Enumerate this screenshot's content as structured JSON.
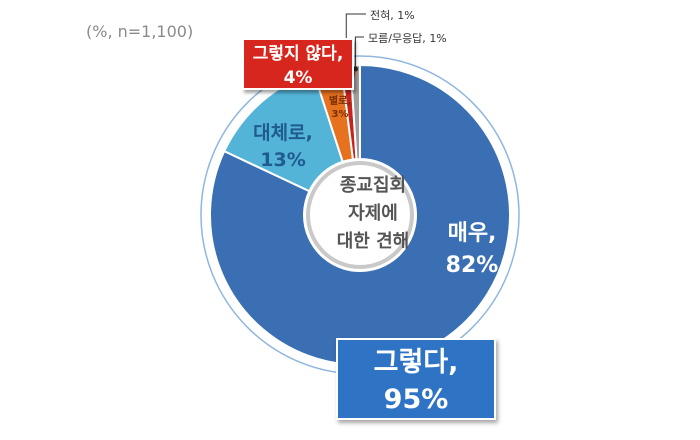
{
  "note": "(%, n=1,100)",
  "center_label": [
    "종교집회",
    "자제에",
    "대한 견해"
  ],
  "summary": {
    "positive": {
      "label": "그렇다,",
      "value": "95%"
    },
    "negative": {
      "label": "그렇지 않다,",
      "value": "4%"
    }
  },
  "colors": {
    "very": "#3a6fb4",
    "somewhat": "#54b4d8",
    "not_really": "#e6711e",
    "not_at_all": "#c8221c",
    "dont_know": "#9e9e9e",
    "positive_box": "#2f73c5",
    "negative_box": "#d7261e"
  },
  "chart_data": {
    "type": "pie",
    "title": "",
    "categories": [
      "매우,",
      "대체로,",
      "별로,",
      "전혀,",
      "모름/무응답,"
    ],
    "values": [
      82,
      13,
      3,
      1,
      1
    ],
    "value_labels": [
      "82%",
      "13%",
      "3%",
      "1%",
      "1%"
    ],
    "series_colors": [
      "#3a6fb4",
      "#54b4d8",
      "#e6711e",
      "#c8221c",
      "#9e9e9e"
    ],
    "groups": [
      {
        "label": "그렇다,",
        "value": "95%"
      },
      {
        "label": "그렇지 않다,",
        "value": "4%"
      }
    ]
  }
}
